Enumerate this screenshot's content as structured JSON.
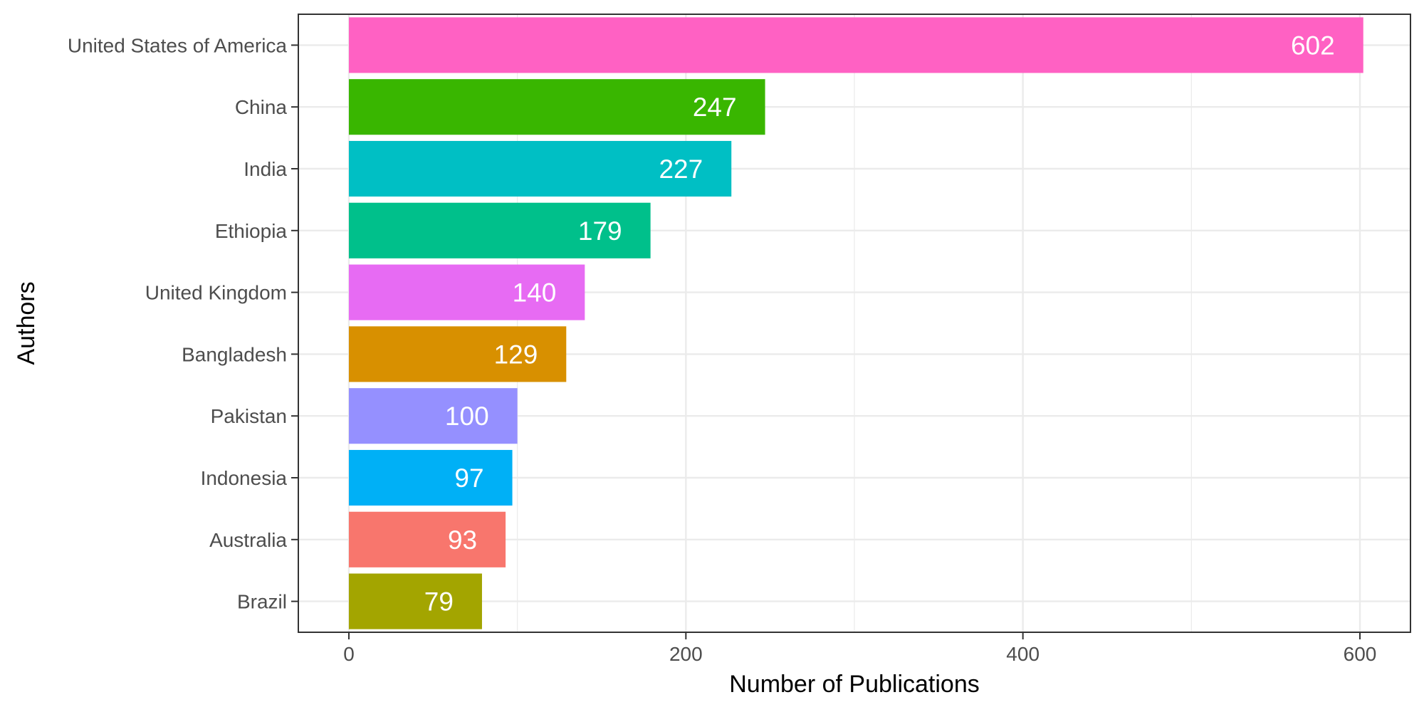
{
  "chart_data": {
    "type": "bar",
    "orientation": "horizontal",
    "xlabel": "Number of Publications",
    "ylabel": "Authors",
    "categories": [
      "United States of America",
      "China",
      "India",
      "Ethiopia",
      "United Kingdom",
      "Bangladesh",
      "Pakistan",
      "Indonesia",
      "Australia",
      "Brazil"
    ],
    "values": [
      602,
      247,
      227,
      179,
      140,
      129,
      100,
      97,
      93,
      79
    ],
    "value_labels": [
      "602",
      "247",
      "227",
      "179",
      "140",
      "129",
      "100",
      "97",
      "93",
      "79"
    ],
    "colors": [
      "#FF61C3",
      "#39B600",
      "#00BFC4",
      "#00C08B",
      "#E76BF3",
      "#D89000",
      "#9590FF",
      "#00B0F6",
      "#F8766D",
      "#A3A500"
    ],
    "xlim": [
      -30,
      630
    ],
    "x_ticks": [
      0,
      200,
      400,
      600
    ],
    "x_tick_labels": [
      "0",
      "200",
      "400",
      "600"
    ],
    "grid": true,
    "legend": "none",
    "theme": "bw"
  }
}
